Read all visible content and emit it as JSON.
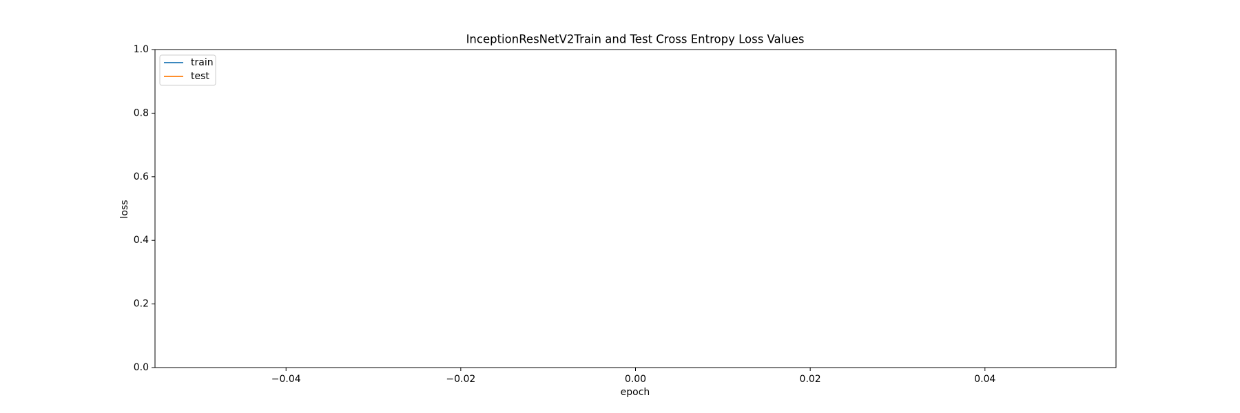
{
  "chart_data": {
    "type": "line",
    "title": "InceptionResNetV2Train and Test Cross Entropy Loss Values",
    "xlabel": "epoch",
    "ylabel": "loss",
    "x": [],
    "series": [
      {
        "name": "train",
        "color": "#1f77b4",
        "values": []
      },
      {
        "name": "test",
        "color": "#ff7f0e",
        "values": []
      }
    ],
    "xlim": [
      -0.055,
      0.055
    ],
    "xticks": [
      {
        "value": -0.04,
        "label": "−0.04"
      },
      {
        "value": -0.02,
        "label": "−0.02"
      },
      {
        "value": 0,
        "label": "0.00"
      },
      0.02,
      0.04
    ],
    "ylim": [
      0,
      1
    ],
    "yticks": [
      {
        "value": 0,
        "label": "0.0"
      },
      0.2,
      0.4,
      0.6,
      0.8,
      {
        "value": 1,
        "label": "1.0"
      }
    ],
    "legend": "upper left",
    "grid": false
  }
}
